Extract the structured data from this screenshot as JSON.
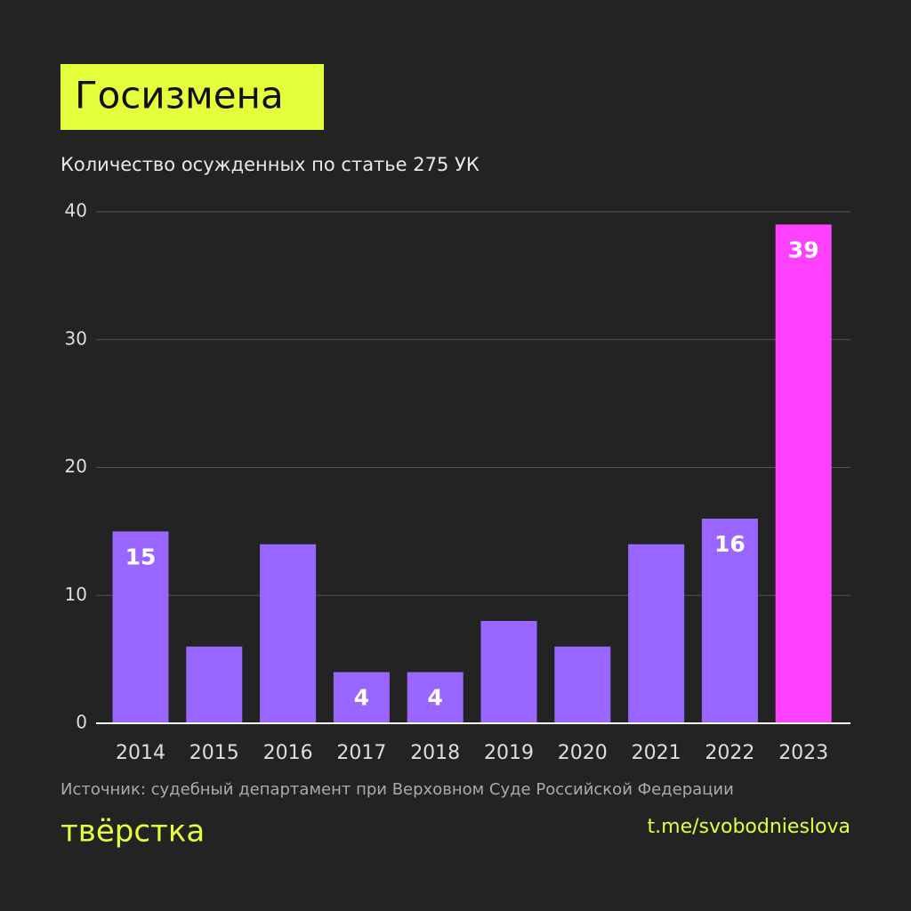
{
  "chart_data": {
    "type": "bar",
    "title": "Госизмена",
    "subtitle": "Количество осужденных по статье 275 УК",
    "categories": [
      "2014",
      "2015",
      "2016",
      "2017",
      "2018",
      "2019",
      "2020",
      "2021",
      "2022",
      "2023"
    ],
    "values": [
      15,
      6,
      14,
      4,
      4,
      8,
      6,
      14,
      16,
      39
    ],
    "value_labels": [
      "15",
      null,
      null,
      "4",
      "4",
      null,
      null,
      null,
      "16",
      "39"
    ],
    "colors": [
      "#9966ff",
      "#9966ff",
      "#9966ff",
      "#9966ff",
      "#9966ff",
      "#9966ff",
      "#9966ff",
      "#9966ff",
      "#9966ff",
      "#ff40ff"
    ],
    "ylim": [
      0,
      40
    ],
    "yticks": [
      0,
      10,
      20,
      30,
      40
    ],
    "grid": true,
    "source": "Источник: судебный департамент при Верховном Суде Российской Федерации",
    "logo": "твёрстка",
    "link": "t.me/svobodnieslova"
  }
}
